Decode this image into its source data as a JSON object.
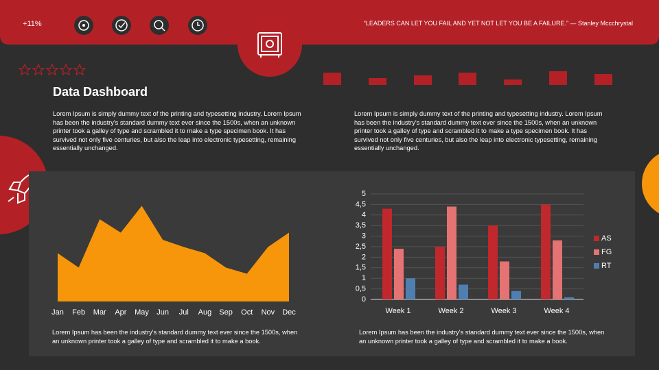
{
  "header": {
    "stat": "+11%",
    "quote": "“LEADERS CAN LET YOU FAIL AND YET NOT LET YOU BE A FAILURE.” — Stanley Mccchrystal"
  },
  "title": "Data Dashboard",
  "paragraphs": [
    "Lorem Ipsum is simply dummy text of the printing and typesetting industry. Lorem Ipsum has been the industry's standard dummy text ever since the 1500s, when an unknown printer took a galley of type and scrambled it to make a type specimen book. It has survived not only five centuries, but also the leap into electronic typesetting, remaining essentially  unchanged.",
    "Lorem Ipsum is simply dummy text of the printing and typesetting industry. Lorem Ipsum has been the industry's standard dummy text ever since the 1500s, when an unknown printer took a galley of type and scrambled it to make a type specimen book. It has survived not only five centuries, but also the leap into electronic typesetting, remaining essentially  unchanged."
  ],
  "captions": [
    "Lorem Ipsum has been the industry's standard dummy text ever since the 1500s, when an unknown printer took a galley of type and scrambled it to make a book.",
    "Lorem Ipsum has been the industry's standard dummy text ever since the 1500s, when an unknown printer took a galley of type and scrambled it to make a book."
  ],
  "chart_data": [
    {
      "type": "area",
      "categories": [
        "Jan",
        "Feb",
        "Mar",
        "Apr",
        "May",
        "Jun",
        "Jul",
        "Aug",
        "Sep",
        "Oct",
        "Nov",
        "Dec"
      ],
      "values": [
        4.7,
        3.3,
        8,
        6.7,
        9.3,
        6,
        5.3,
        4.7,
        3.3,
        2.7,
        5.3,
        6.7
      ],
      "color": "#f7960b",
      "ylim": [
        0,
        10
      ]
    },
    {
      "type": "bar",
      "categories": [
        "Week 1",
        "Week 2",
        "Week 3",
        "Week 4"
      ],
      "series": [
        {
          "name": "AS",
          "color": "#c0282d",
          "values": [
            4.3,
            2.5,
            3.5,
            4.5
          ]
        },
        {
          "name": "FG",
          "color": "#e57373",
          "values": [
            2.4,
            4.4,
            1.8,
            2.8
          ]
        },
        {
          "name": "RT",
          "color": "#4f7fb0",
          "values": [
            1.0,
            0.7,
            0.4,
            0.1
          ]
        }
      ],
      "ylim": [
        0,
        5
      ],
      "yticks": [
        0,
        {
          "value": 0.5,
          "label": "0,5"
        },
        1,
        {
          "value": 1.5,
          "label": "1,5"
        },
        2,
        {
          "value": 2.5,
          "label": "2,5"
        },
        3,
        {
          "value": 3.5,
          "label": "3,5"
        },
        4,
        {
          "value": 4.5,
          "label": "4,5"
        },
        5
      ],
      "grid": true,
      "legend": "right"
    }
  ]
}
